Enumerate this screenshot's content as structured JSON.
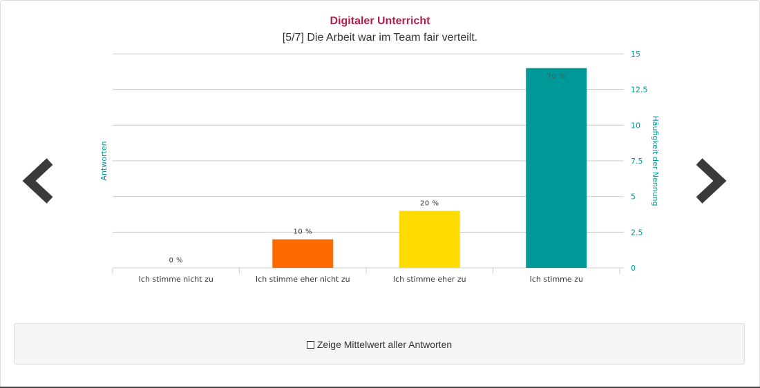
{
  "chart_data": {
    "type": "bar",
    "title": "Digitaler Unterricht",
    "subtitle": "[5/7] Die Arbeit war im Team fair verteilt.",
    "categories": [
      "Ich stimme nicht zu",
      "Ich stimme eher nicht zu",
      "Ich stimme eher zu",
      "Ich stimme zu"
    ],
    "values": [
      0,
      2,
      4,
      14
    ],
    "data_labels": [
      "0 %",
      "10 %",
      "20 %",
      "70 %"
    ],
    "colors": [
      "#cccccc",
      "#ff6a00",
      "#ffdc00",
      "#009999"
    ],
    "ylabel_left": "Antworten",
    "ylabel_right": "Häufigkeit der Nennung",
    "yticks": [
      "0",
      "2.5",
      "5",
      "7.5",
      "10",
      "12.5",
      "15"
    ],
    "ylim": [
      0,
      15
    ],
    "grid": true,
    "axis_color": "#009999"
  },
  "nav": {
    "prev_icon": "chevron-left-icon",
    "next_icon": "chevron-right-icon"
  },
  "mean_toggle": {
    "label": "Zeige Mittelwert aller Antworten",
    "checked": false
  }
}
